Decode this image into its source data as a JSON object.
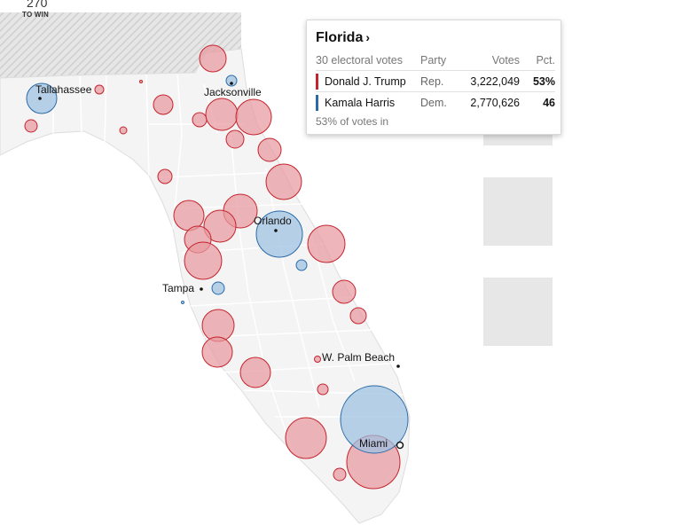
{
  "header": {
    "win_number": "270",
    "win_label": "TO WIN"
  },
  "tooltip": {
    "state": "Florida",
    "chevron": "›",
    "electoral_votes": "30 electoral votes",
    "columns": {
      "party": "Party",
      "votes": "Votes",
      "pct": "Pct."
    },
    "candidates": [
      {
        "name": "Donald J. Trump",
        "party": "Rep.",
        "votes": "3,222,049",
        "pct": "53%",
        "color": "#c4242e"
      },
      {
        "name": "Kamala Harris",
        "party": "Dem.",
        "votes": "2,770,626",
        "pct": "46",
        "color": "#2a6aa8"
      }
    ],
    "reporting": "53% of votes in"
  },
  "cities": {
    "tallahassee": "Tallahassee",
    "jacksonville": "Jacksonville",
    "orlando": "Orlando",
    "tampa": "Tampa",
    "palm_beach": "W. Palm Beach",
    "miami": "Miami"
  },
  "colors": {
    "rep_fill": "#e89a9f",
    "rep_stroke": "#c4242e",
    "dem_fill": "#9cc0e0",
    "dem_stroke": "#2a6aa8",
    "land": "#f4f4f4",
    "county_line": "#ffffff"
  }
}
